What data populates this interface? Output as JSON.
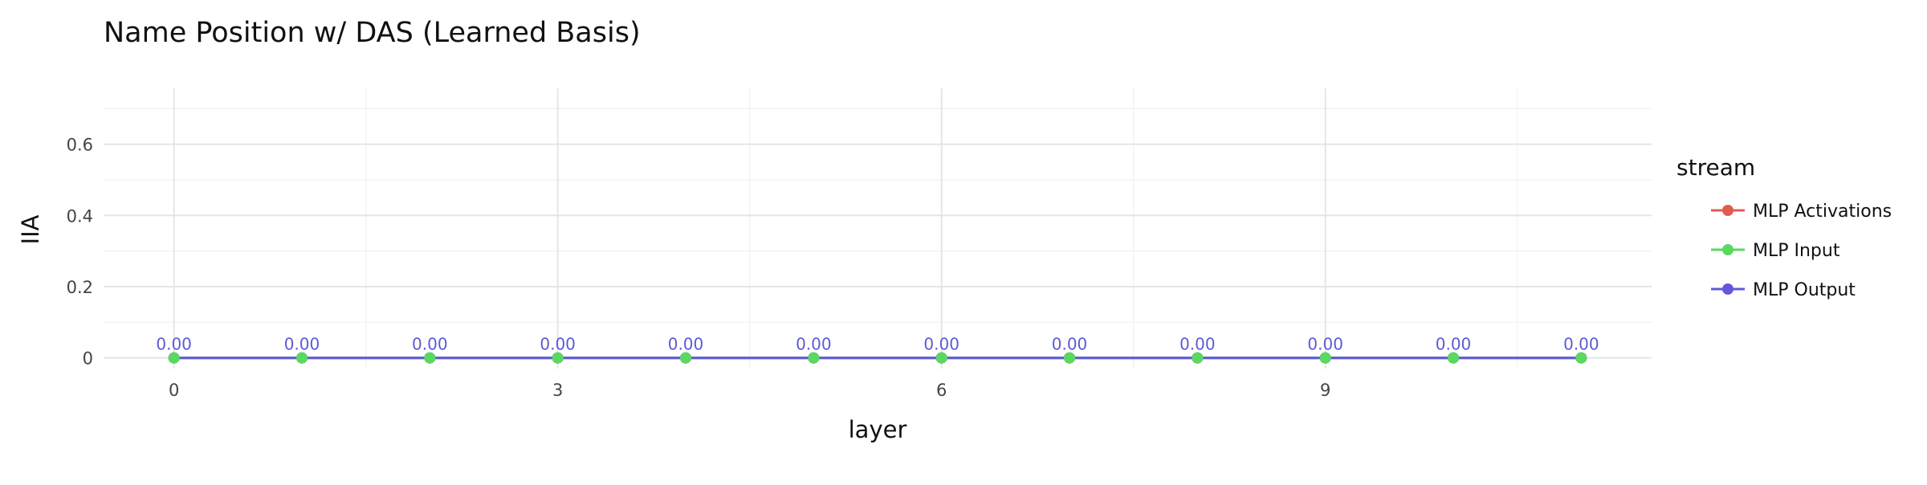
{
  "chart_data": {
    "type": "line",
    "title": "Name Position w/ DAS (Learned Basis)",
    "xlabel": "layer",
    "ylabel": "IIA",
    "x": [
      0,
      1,
      2,
      3,
      4,
      5,
      6,
      7,
      8,
      9,
      10,
      11
    ],
    "xlim": [
      -0.55,
      11.55
    ],
    "ylim": [
      -0.03,
      0.757
    ],
    "xticks": [
      0,
      3,
      6,
      9
    ],
    "xtick_labels": [
      "0",
      "3",
      "6",
      "9"
    ],
    "yticks": [
      0,
      0.2,
      0.4,
      0.6
    ],
    "ytick_labels": [
      "0",
      "0.2",
      "0.4",
      "0.6"
    ],
    "grid": true,
    "legend": {
      "title": "stream",
      "position": "right"
    },
    "series": [
      {
        "name": "MLP Activations",
        "color": "#e05c52",
        "values": [
          0,
          0,
          0,
          0,
          0,
          0,
          0,
          0,
          0,
          0,
          0,
          0
        ]
      },
      {
        "name": "MLP Input",
        "color": "#59d95e",
        "values": [
          0,
          0,
          0,
          0,
          0,
          0,
          0,
          0,
          0,
          0,
          0,
          0
        ]
      },
      {
        "name": "MLP Output",
        "color": "#6159d9",
        "values": [
          0,
          0,
          0,
          0,
          0,
          0,
          0,
          0,
          0,
          0,
          0,
          0
        ]
      }
    ],
    "data_labels": [
      "0.00",
      "0.00",
      "0.00",
      "0.00",
      "0.00",
      "0.00",
      "0.00",
      "0.00",
      "0.00",
      "0.00",
      "0.00",
      "0.00"
    ],
    "data_label_color": "#5b5bd0"
  }
}
